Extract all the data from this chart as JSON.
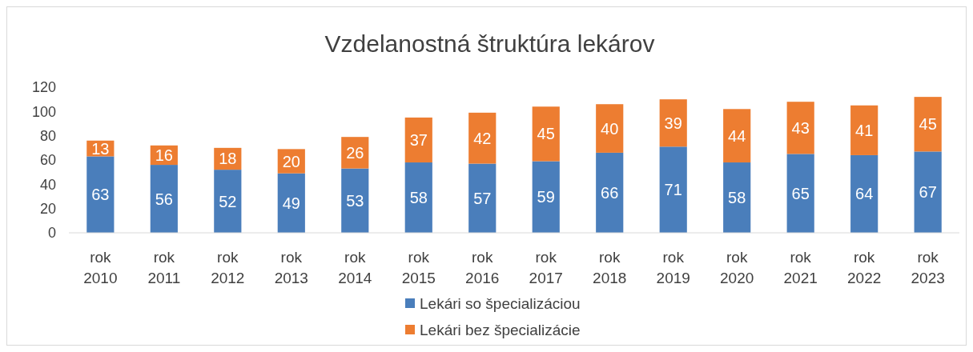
{
  "chart_data": {
    "type": "bar",
    "title": "Vzdelanostná štruktúra lekárov",
    "categories": [
      "rok 2010",
      "rok 2011",
      "rok 2012",
      "rok 2013",
      "rok 2014",
      "rok 2015",
      "rok 2016",
      "rok 2017",
      "rok 2018",
      "rok 2019",
      "rok 2020",
      "rok 2021",
      "rok 2022",
      "rok 2023"
    ],
    "series": [
      {
        "name": "Lekári so špecializáciou",
        "color": "#4a7ebb",
        "values": [
          63,
          56,
          52,
          49,
          53,
          58,
          57,
          59,
          66,
          71,
          58,
          65,
          64,
          67
        ]
      },
      {
        "name": "Lekári bez špecializácie",
        "color": "#ed7d31",
        "values": [
          13,
          16,
          18,
          20,
          26,
          37,
          42,
          45,
          40,
          39,
          44,
          43,
          41,
          45
        ]
      }
    ],
    "stacked": true,
    "ylim": [
      0,
      120
    ],
    "yticks": [
      0,
      20,
      40,
      60,
      80,
      100,
      120
    ],
    "data_labels": true,
    "grid": false,
    "legend": "bottom"
  }
}
